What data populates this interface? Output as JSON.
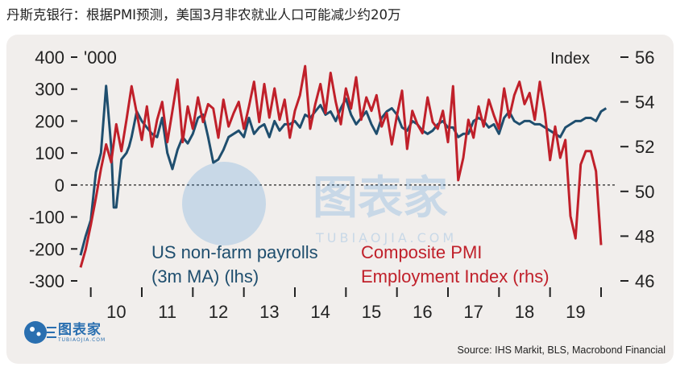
{
  "title": "丹斯克银行：根据PMI预测，美国3月非农就业人口可能减少约20万",
  "source": "Source: IHS Markit, BLS, Macrobond Financial",
  "logo": {
    "main": "图表家",
    "sub": "TUBIAOJIA.COM"
  },
  "watermark": {
    "main": "图表家",
    "sub": "TUBIAOJIA.COM"
  },
  "colors": {
    "payrolls": "#1f4e6e",
    "pmi": "#c0202a",
    "panel": "#f1eeec"
  },
  "chart_data": {
    "type": "line",
    "left_axis": {
      "unit_label": "'000",
      "ylim": [
        -300,
        400
      ],
      "ticks": [
        400,
        300,
        200,
        100,
        0,
        -100,
        -200,
        -300
      ]
    },
    "right_axis": {
      "unit_label": "Index",
      "ylim": [
        46,
        56
      ],
      "ticks": [
        56,
        54,
        52,
        50,
        48,
        46
      ]
    },
    "x_ticks": [
      "10",
      "11",
      "12",
      "13",
      "14",
      "15",
      "16",
      "17",
      "18",
      "19"
    ],
    "x_range": [
      2009.8,
      2020.3
    ],
    "zero_line": true,
    "series": [
      {
        "name": "US non-farm payrolls (3m MA) (lhs)",
        "axis": "left",
        "label_lines": [
          "US non-farm payrolls",
          "(3m MA) (lhs)"
        ],
        "x": [
          2009.8,
          2009.9,
          2010.0,
          2010.1,
          2010.2,
          2010.3,
          2010.4,
          2010.45,
          2010.5,
          2010.6,
          2010.7,
          2010.75,
          2010.8,
          2010.9,
          2011.0,
          2011.1,
          2011.2,
          2011.3,
          2011.4,
          2011.5,
          2011.6,
          2011.7,
          2011.8,
          2011.9,
          2012.0,
          2012.1,
          2012.2,
          2012.3,
          2012.4,
          2012.5,
          2012.6,
          2012.7,
          2012.8,
          2012.9,
          2013.0,
          2013.1,
          2013.2,
          2013.3,
          2013.4,
          2013.5,
          2013.6,
          2013.7,
          2013.8,
          2013.9,
          2014.0,
          2014.1,
          2014.2,
          2014.3,
          2014.4,
          2014.5,
          2014.6,
          2014.7,
          2014.8,
          2014.9,
          2015.0,
          2015.1,
          2015.2,
          2015.3,
          2015.4,
          2015.5,
          2015.6,
          2015.7,
          2015.8,
          2015.9,
          2016.0,
          2016.1,
          2016.2,
          2016.3,
          2016.4,
          2016.5,
          2016.6,
          2016.7,
          2016.8,
          2016.9,
          2017.0,
          2017.1,
          2017.2,
          2017.3,
          2017.4,
          2017.5,
          2017.6,
          2017.7,
          2017.8,
          2017.9,
          2018.0,
          2018.1,
          2018.2,
          2018.3,
          2018.4,
          2018.5,
          2018.6,
          2018.7,
          2018.8,
          2018.9,
          2019.0,
          2019.1,
          2019.2,
          2019.3,
          2019.4,
          2019.5,
          2019.6,
          2019.7,
          2019.8,
          2019.9,
          2020.0,
          2020.1
        ],
        "values": [
          -220,
          -160,
          -110,
          40,
          100,
          310,
          120,
          -70,
          -70,
          80,
          100,
          120,
          150,
          230,
          200,
          180,
          160,
          150,
          210,
          100,
          50,
          110,
          150,
          130,
          160,
          210,
          220,
          150,
          70,
          80,
          110,
          150,
          160,
          170,
          150,
          210,
          160,
          180,
          190,
          150,
          200,
          170,
          190,
          190,
          200,
          180,
          220,
          210,
          230,
          250,
          220,
          230,
          200,
          240,
          270,
          220,
          190,
          210,
          230,
          190,
          160,
          210,
          230,
          240,
          220,
          180,
          170,
          200,
          190,
          170,
          160,
          170,
          190,
          200,
          180,
          180,
          150,
          160,
          160,
          200,
          210,
          200,
          180,
          190,
          160,
          210,
          230,
          200,
          190,
          200,
          200,
          190,
          190,
          180,
          170,
          160,
          150,
          180,
          190,
          200,
          200,
          210,
          210,
          200,
          230,
          240
        ]
      },
      {
        "name": "Composite PMI Employment Index (rhs)",
        "axis": "right",
        "label_lines": [
          "Composite PMI",
          "Employment Index (rhs)"
        ],
        "x": [
          2009.8,
          2009.9,
          2010.0,
          2010.1,
          2010.2,
          2010.3,
          2010.4,
          2010.5,
          2010.6,
          2010.7,
          2010.8,
          2010.9,
          2011.0,
          2011.1,
          2011.2,
          2011.3,
          2011.4,
          2011.5,
          2011.6,
          2011.7,
          2011.8,
          2011.9,
          2012.0,
          2012.1,
          2012.2,
          2012.3,
          2012.4,
          2012.5,
          2012.6,
          2012.7,
          2012.8,
          2012.9,
          2013.0,
          2013.1,
          2013.2,
          2013.3,
          2013.4,
          2013.5,
          2013.6,
          2013.7,
          2013.8,
          2013.9,
          2014.0,
          2014.1,
          2014.2,
          2014.3,
          2014.4,
          2014.5,
          2014.6,
          2014.7,
          2014.8,
          2014.9,
          2015.0,
          2015.1,
          2015.2,
          2015.3,
          2015.4,
          2015.5,
          2015.6,
          2015.7,
          2015.8,
          2015.9,
          2016.0,
          2016.1,
          2016.2,
          2016.3,
          2016.4,
          2016.5,
          2016.6,
          2016.7,
          2016.8,
          2016.9,
          2017.0,
          2017.1,
          2017.2,
          2017.3,
          2017.4,
          2017.5,
          2017.6,
          2017.7,
          2017.8,
          2017.9,
          2018.0,
          2018.1,
          2018.2,
          2018.3,
          2018.4,
          2018.5,
          2018.6,
          2018.7,
          2018.8,
          2018.9,
          2019.0,
          2019.1,
          2019.2,
          2019.3,
          2019.4,
          2019.5,
          2019.6,
          2019.7,
          2019.8,
          2019.9,
          2020.0,
          2020.1,
          2020.2
        ],
        "values": [
          46.6,
          47.4,
          48.5,
          49.7,
          51.0,
          52.1,
          51.3,
          53.0,
          51.8,
          53.2,
          54.7,
          53.5,
          52.3,
          53.8,
          52.0,
          53.2,
          54.0,
          52.2,
          53.6,
          55.0,
          52.2,
          53.8,
          52.8,
          54.2,
          53.1,
          53.9,
          53.7,
          52.4,
          54.1,
          52.9,
          53.5,
          54.0,
          52.8,
          53.8,
          54.9,
          53.1,
          54.8,
          53.3,
          54.6,
          53.2,
          54.1,
          52.4,
          53.6,
          54.3,
          55.6,
          52.8,
          53.9,
          54.8,
          53.5,
          55.3,
          54.0,
          53.0,
          54.6,
          53.7,
          55.1,
          53.2,
          54.2,
          53.6,
          54.3,
          52.9,
          53.5,
          52.1,
          53.4,
          54.5,
          51.9,
          53.6,
          53.0,
          52.6,
          54.2,
          53.1,
          52.8,
          53.6,
          52.2,
          54.7,
          50.5,
          51.5,
          53.2,
          52.4,
          53.8,
          52.9,
          54.1,
          53.4,
          52.8,
          54.6,
          53.3,
          54.3,
          54.9,
          53.9,
          54.4,
          53.2,
          54.9,
          53.5,
          51.4,
          52.9,
          51.5,
          52.3,
          48.9,
          47.9,
          51.2,
          51.8,
          51.8,
          50.9,
          47.6,
          null,
          null
        ]
      }
    ]
  }
}
